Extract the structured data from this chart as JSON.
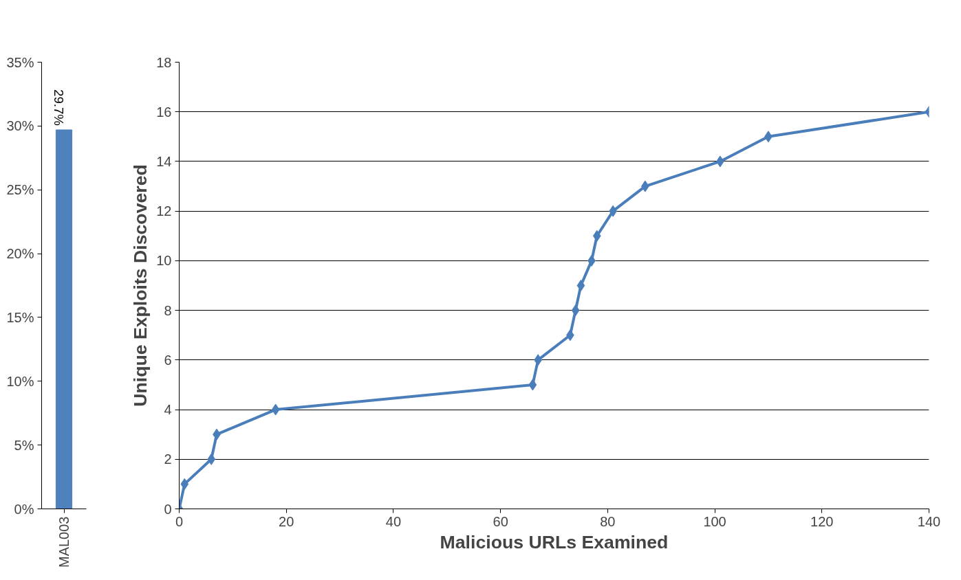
{
  "chart_data": [
    {
      "type": "bar",
      "categories": [
        "MAL003"
      ],
      "values": [
        29.7
      ],
      "value_labels": [
        "29.7%"
      ],
      "color": "#4f81bd",
      "ylim": [
        0,
        35
      ],
      "yticks": [
        {
          "value": 0,
          "label": "0%"
        },
        {
          "value": 5,
          "label": "5%"
        },
        {
          "value": 10,
          "label": "10%"
        },
        {
          "value": 15,
          "label": "15%"
        },
        {
          "value": 20,
          "label": "20%"
        },
        {
          "value": 25,
          "label": "25%"
        },
        {
          "value": 30,
          "label": "30%"
        },
        {
          "value": 35,
          "label": "35%"
        }
      ],
      "grid": false
    },
    {
      "type": "line",
      "xlabel": "Malicious URLs Examined",
      "ylabel": "Unique Exploits Discovered",
      "marker": "diamond",
      "line_style": "solid",
      "grid": "y",
      "xlim": [
        0,
        140
      ],
      "xticks": [
        0,
        20,
        40,
        60,
        80,
        100,
        120,
        140
      ],
      "ylim": [
        0,
        18
      ],
      "yticks": [
        0,
        2,
        4,
        6,
        8,
        10,
        12,
        14,
        16,
        18
      ],
      "series": [
        {
          "color": "#4a7ebb",
          "x": [
            0,
            1,
            6,
            7,
            18,
            66,
            67,
            73,
            74,
            75,
            77,
            78,
            81,
            87,
            101,
            110,
            140
          ],
          "values": [
            0,
            1,
            2,
            3,
            4,
            5,
            6,
            7,
            8,
            9,
            10,
            11,
            12,
            13,
            14,
            15,
            16
          ]
        }
      ]
    }
  ]
}
